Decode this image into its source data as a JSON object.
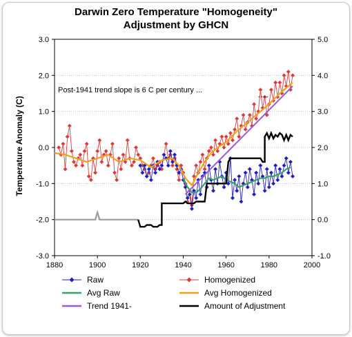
{
  "chart_data": {
    "type": "line",
    "title_line1": "Darwin Zero Temperature \"Homogeneity\"",
    "title_line2": "Adjustment by GHCN",
    "ylabel": "Temperature Anomaly (C)",
    "xlim": [
      1880,
      2000
    ],
    "ylim_left": [
      -3,
      3
    ],
    "ylim_right": [
      -1,
      5
    ],
    "x_ticks": [
      "1880",
      "1900",
      "1920",
      "1940",
      "1960",
      "1980",
      "2000"
    ],
    "y_ticks_left": [
      "3.0",
      "2.0",
      "1.0",
      "0.0",
      "-1.0",
      "-2.0",
      "-3.0"
    ],
    "y_ticks_right": [
      "5.0",
      "4.0",
      "3.0",
      "2.0",
      "1.0",
      "0.0",
      "-1.0"
    ],
    "annotation": "Post-1941 trend slope is 6 C per century ...",
    "colors": {
      "raw": "#1f1fb4",
      "homogenized": "#d43c3c",
      "avg_raw": "#3c9e6c",
      "avg_homogenized": "#f0a020",
      "trend": "#9a5ad8",
      "adjustment": "#000000",
      "adjustment_early": "#9a9a9a"
    },
    "legend": [
      {
        "label": "Raw",
        "key": "raw",
        "marker": "diamond"
      },
      {
        "label": "Homogenized",
        "key": "homogenized",
        "marker": "diamond"
      },
      {
        "label": "Avg Raw",
        "key": "avg_raw",
        "marker": "line"
      },
      {
        "label": "Avg Homogenized",
        "key": "avg_homogenized",
        "marker": "line"
      },
      {
        "label": "Trend 1941-",
        "key": "trend",
        "marker": "line"
      },
      {
        "label": "Amount of Adjustment",
        "key": "adjustment",
        "marker": "line"
      }
    ],
    "series": {
      "homogenized": [
        [
          1882,
          0.0
        ],
        [
          1883,
          -0.2
        ],
        [
          1884,
          0.1
        ],
        [
          1885,
          -0.6
        ],
        [
          1886,
          0.3
        ],
        [
          1887,
          0.6
        ],
        [
          1888,
          -0.1
        ],
        [
          1889,
          -0.4
        ],
        [
          1890,
          -0.5
        ],
        [
          1891,
          -0.3
        ],
        [
          1892,
          -0.2
        ],
        [
          1893,
          -0.5
        ],
        [
          1894,
          -0.1
        ],
        [
          1895,
          0.1
        ],
        [
          1896,
          -0.8
        ],
        [
          1897,
          -0.9
        ],
        [
          1898,
          -0.3
        ],
        [
          1899,
          -0.7
        ],
        [
          1900,
          -0.1
        ],
        [
          1901,
          0.2
        ],
        [
          1902,
          -0.4
        ],
        [
          1903,
          -0.2
        ],
        [
          1904,
          -0.1
        ],
        [
          1905,
          -0.5
        ],
        [
          1906,
          -0.2
        ],
        [
          1907,
          0.1
        ],
        [
          1908,
          -0.7
        ],
        [
          1909,
          -0.9
        ],
        [
          1910,
          -0.3
        ],
        [
          1911,
          -0.6
        ],
        [
          1912,
          -0.2
        ],
        [
          1913,
          -0.4
        ],
        [
          1914,
          0.2
        ],
        [
          1915,
          -0.3
        ],
        [
          1916,
          -0.5
        ],
        [
          1917,
          -0.4
        ],
        [
          1918,
          0.0
        ],
        [
          1919,
          -0.2
        ],
        [
          1920,
          -0.3
        ],
        [
          1921,
          -0.5
        ],
        [
          1922,
          -0.6
        ],
        [
          1923,
          -0.8
        ],
        [
          1924,
          -0.7
        ],
        [
          1925,
          -0.5
        ],
        [
          1926,
          -0.3
        ],
        [
          1927,
          -0.6
        ],
        [
          1928,
          -0.5
        ],
        [
          1929,
          -0.4
        ],
        [
          1930,
          -0.6
        ],
        [
          1931,
          -0.2
        ],
        [
          1932,
          0.1
        ],
        [
          1933,
          -0.3
        ],
        [
          1934,
          -0.2
        ],
        [
          1935,
          -0.5
        ],
        [
          1936,
          -0.3
        ],
        [
          1937,
          -0.6
        ],
        [
          1938,
          -0.9
        ],
        [
          1939,
          -0.5
        ],
        [
          1940,
          -0.7
        ],
        [
          1941,
          -1.0
        ],
        [
          1942,
          -1.5
        ],
        [
          1943,
          -1.2
        ],
        [
          1944,
          -1.6
        ],
        [
          1945,
          -0.8
        ],
        [
          1946,
          -0.5
        ],
        [
          1947,
          -0.7
        ],
        [
          1948,
          -0.4
        ],
        [
          1949,
          -0.2
        ],
        [
          1950,
          -0.6
        ],
        [
          1951,
          -0.3
        ],
        [
          1952,
          -0.1
        ],
        [
          1953,
          0.0
        ],
        [
          1954,
          -0.2
        ],
        [
          1955,
          0.2
        ],
        [
          1956,
          -0.1
        ],
        [
          1957,
          0.1
        ],
        [
          1958,
          0.3
        ],
        [
          1959,
          0.0
        ],
        [
          1960,
          0.3
        ],
        [
          1961,
          0.1
        ],
        [
          1962,
          0.4
        ],
        [
          1963,
          0.2
        ],
        [
          1964,
          0.5
        ],
        [
          1965,
          0.8
        ],
        [
          1966,
          0.3
        ],
        [
          1967,
          0.6
        ],
        [
          1968,
          0.9
        ],
        [
          1969,
          0.5
        ],
        [
          1970,
          0.7
        ],
        [
          1971,
          0.9
        ],
        [
          1972,
          0.6
        ],
        [
          1973,
          1.2
        ],
        [
          1974,
          0.8
        ],
        [
          1975,
          1.0
        ],
        [
          1976,
          1.6
        ],
        [
          1977,
          1.1
        ],
        [
          1978,
          1.4
        ],
        [
          1979,
          0.9
        ],
        [
          1980,
          1.2
        ],
        [
          1981,
          1.6
        ],
        [
          1982,
          1.3
        ],
        [
          1983,
          1.8
        ],
        [
          1984,
          1.4
        ],
        [
          1985,
          1.8
        ],
        [
          1986,
          1.5
        ],
        [
          1987,
          2.0
        ],
        [
          1988,
          1.7
        ],
        [
          1989,
          2.1
        ],
        [
          1990,
          1.6
        ],
        [
          1991,
          2.0
        ]
      ],
      "raw": [
        [
          1920,
          -0.5
        ],
        [
          1921,
          -0.7
        ],
        [
          1922,
          -0.5
        ],
        [
          1923,
          -0.8
        ],
        [
          1924,
          -0.6
        ],
        [
          1925,
          -0.9
        ],
        [
          1926,
          -0.5
        ],
        [
          1927,
          -0.7
        ],
        [
          1928,
          -0.4
        ],
        [
          1929,
          -0.6
        ],
        [
          1930,
          -0.5
        ],
        [
          1931,
          -0.2
        ],
        [
          1932,
          -0.3
        ],
        [
          1933,
          -0.5
        ],
        [
          1934,
          -0.1
        ],
        [
          1935,
          -0.4
        ],
        [
          1936,
          -0.2
        ],
        [
          1937,
          -0.5
        ],
        [
          1938,
          -0.7
        ],
        [
          1939,
          -0.6
        ],
        [
          1940,
          -0.9
        ],
        [
          1941,
          -1.1
        ],
        [
          1942,
          -1.4
        ],
        [
          1943,
          -1.3
        ],
        [
          1944,
          -1.7
        ],
        [
          1945,
          -1.2
        ],
        [
          1946,
          -1.4
        ],
        [
          1947,
          -0.9
        ],
        [
          1948,
          -1.3
        ],
        [
          1949,
          -0.8
        ],
        [
          1950,
          -0.7
        ],
        [
          1951,
          -1.1
        ],
        [
          1952,
          -0.5
        ],
        [
          1953,
          -0.9
        ],
        [
          1954,
          -1.2
        ],
        [
          1955,
          -0.6
        ],
        [
          1956,
          -1.0
        ],
        [
          1957,
          -0.4
        ],
        [
          1958,
          -0.8
        ],
        [
          1959,
          -1.1
        ],
        [
          1960,
          -0.7
        ],
        [
          1961,
          -1.0
        ],
        [
          1962,
          -0.3
        ],
        [
          1963,
          -1.4
        ],
        [
          1964,
          -0.9
        ],
        [
          1965,
          -1.2
        ],
        [
          1966,
          -0.8
        ],
        [
          1967,
          -1.5
        ],
        [
          1968,
          -1.0
        ],
        [
          1969,
          -0.7
        ],
        [
          1970,
          -1.1
        ],
        [
          1971,
          -0.6
        ],
        [
          1972,
          -0.9
        ],
        [
          1973,
          -1.3
        ],
        [
          1974,
          -0.7
        ],
        [
          1975,
          -1.0
        ],
        [
          1976,
          -0.5
        ],
        [
          1977,
          -0.8
        ],
        [
          1978,
          -1.2
        ],
        [
          1979,
          -0.6
        ],
        [
          1980,
          -1.1
        ],
        [
          1981,
          -0.7
        ],
        [
          1982,
          -1.0
        ],
        [
          1983,
          -0.5
        ],
        [
          1984,
          -0.9
        ],
        [
          1985,
          -0.6
        ],
        [
          1986,
          -0.8
        ],
        [
          1987,
          -0.5
        ],
        [
          1988,
          -0.3
        ],
        [
          1989,
          -0.7
        ],
        [
          1990,
          -0.4
        ],
        [
          1991,
          -0.8
        ]
      ],
      "avg_raw": [
        [
          1940,
          -0.85
        ],
        [
          1942,
          -1.1
        ],
        [
          1944,
          -1.25
        ],
        [
          1946,
          -1.25
        ],
        [
          1948,
          -1.15
        ],
        [
          1950,
          -1.0
        ],
        [
          1952,
          -0.85
        ],
        [
          1954,
          -0.9
        ],
        [
          1956,
          -0.85
        ],
        [
          1958,
          -0.8
        ],
        [
          1960,
          -0.9
        ],
        [
          1962,
          -0.95
        ],
        [
          1964,
          -1.0
        ],
        [
          1966,
          -1.1
        ],
        [
          1968,
          -1.05
        ],
        [
          1970,
          -1.0
        ],
        [
          1972,
          -0.95
        ],
        [
          1974,
          -0.9
        ],
        [
          1976,
          -0.85
        ],
        [
          1978,
          -0.85
        ],
        [
          1980,
          -0.8
        ],
        [
          1982,
          -0.8
        ],
        [
          1984,
          -0.75
        ],
        [
          1986,
          -0.7
        ],
        [
          1988,
          -0.6
        ],
        [
          1990,
          -0.55
        ]
      ],
      "avg_homogenized": [
        [
          1880,
          -0.15
        ],
        [
          1885,
          -0.2
        ],
        [
          1890,
          -0.3
        ],
        [
          1895,
          -0.4
        ],
        [
          1900,
          -0.3
        ],
        [
          1905,
          -0.2
        ],
        [
          1910,
          -0.4
        ],
        [
          1915,
          -0.3
        ],
        [
          1920,
          -0.35
        ],
        [
          1925,
          -0.55
        ],
        [
          1930,
          -0.35
        ],
        [
          1935,
          -0.3
        ],
        [
          1938,
          -0.5
        ],
        [
          1941,
          -0.85
        ],
        [
          1944,
          -1.05
        ],
        [
          1947,
          -0.7
        ],
        [
          1950,
          -0.4
        ],
        [
          1953,
          -0.15
        ],
        [
          1956,
          0.0
        ],
        [
          1960,
          0.15
        ],
        [
          1965,
          0.45
        ],
        [
          1970,
          0.7
        ],
        [
          1975,
          0.95
        ],
        [
          1980,
          1.2
        ],
        [
          1985,
          1.5
        ],
        [
          1991,
          1.8
        ]
      ],
      "trend": [
        [
          1941,
          -1.3
        ],
        [
          1991,
          1.7
        ]
      ],
      "adjustment_early": [
        [
          1880,
          -2.0
        ],
        [
          1890,
          -2.0
        ],
        [
          1898,
          -2.0
        ],
        [
          1899,
          -2.0
        ],
        [
          1900,
          -1.8
        ],
        [
          1901,
          -2.0
        ],
        [
          1919,
          -2.0
        ]
      ],
      "adjustment": [
        [
          1919,
          -2.0
        ],
        [
          1920,
          -2.2
        ],
        [
          1922,
          -2.2
        ],
        [
          1923,
          -2.15
        ],
        [
          1925,
          -2.15
        ],
        [
          1926,
          -2.2
        ],
        [
          1928,
          -2.2
        ],
        [
          1929,
          -2.15
        ],
        [
          1930,
          -2.15
        ],
        [
          1930,
          -1.55
        ],
        [
          1940,
          -1.55
        ],
        [
          1941,
          -1.5
        ],
        [
          1942,
          -1.55
        ],
        [
          1945,
          -1.55
        ],
        [
          1946,
          -1.5
        ],
        [
          1950,
          -1.5
        ],
        [
          1951,
          -1.0
        ],
        [
          1960,
          -1.0
        ],
        [
          1961,
          -0.4
        ],
        [
          1962,
          -0.3
        ],
        [
          1970,
          -0.3
        ],
        [
          1976,
          -0.3
        ],
        [
          1977,
          -0.4
        ],
        [
          1978,
          -0.4
        ],
        [
          1978,
          0.3
        ],
        [
          1979,
          0.4
        ],
        [
          1980,
          0.25
        ],
        [
          1981,
          0.4
        ],
        [
          1982,
          0.25
        ],
        [
          1983,
          0.35
        ],
        [
          1984,
          0.3
        ],
        [
          1985,
          0.4
        ],
        [
          1986,
          0.35
        ],
        [
          1987,
          0.2
        ],
        [
          1988,
          0.35
        ],
        [
          1989,
          0.2
        ],
        [
          1990,
          0.35
        ],
        [
          1991,
          0.3
        ]
      ]
    }
  }
}
